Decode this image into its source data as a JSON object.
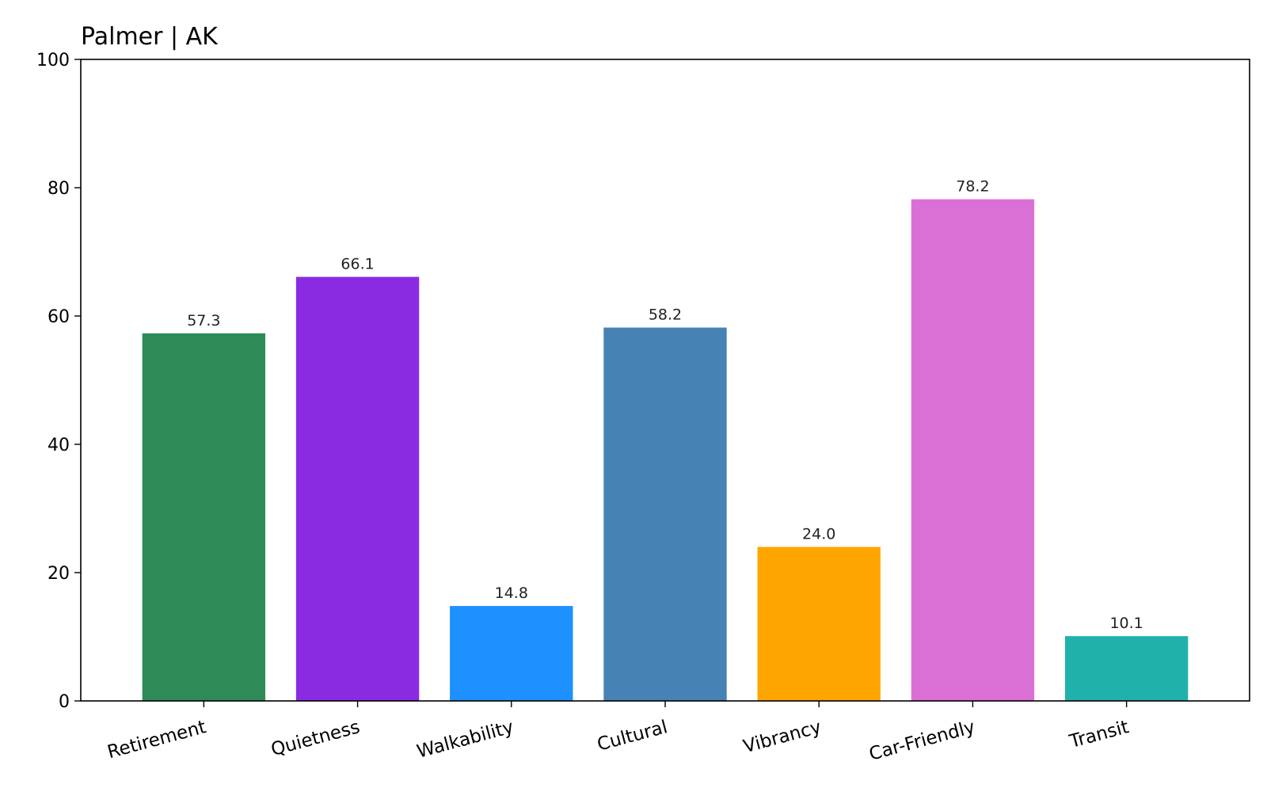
{
  "chart_data": {
    "type": "bar",
    "title": "Palmer | AK",
    "xlabel": "",
    "ylabel": "",
    "ylim": [
      0,
      100
    ],
    "yticks": [
      0,
      20,
      40,
      60,
      80,
      100
    ],
    "grid": false,
    "categories": [
      "Retirement",
      "Quietness",
      "Walkability",
      "Cultural",
      "Vibrancy",
      "Car-Friendly",
      "Transit"
    ],
    "values": [
      57.3,
      66.1,
      14.8,
      58.2,
      24.0,
      78.2,
      10.1
    ],
    "value_labels": [
      "57.3",
      "66.1",
      "14.8",
      "58.2",
      "24.0",
      "78.2",
      "10.1"
    ],
    "colors": [
      "#2e8b57",
      "#8a2be2",
      "#1e90ff",
      "#4682b4",
      "#ffa500",
      "#da70d6",
      "#20b2aa"
    ]
  }
}
